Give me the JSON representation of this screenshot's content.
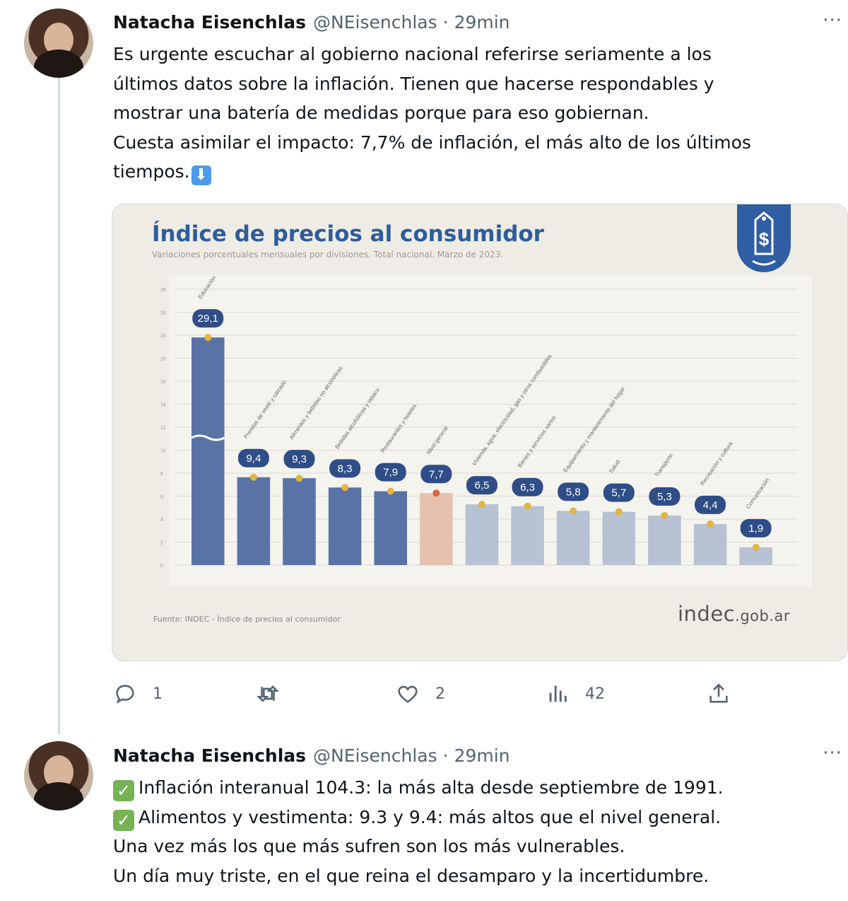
{
  "tweets": [
    {
      "author": "Natacha Eisenchlas",
      "handle": "@NEisenchlas",
      "separator": "·",
      "time": "29min",
      "more": "···",
      "lines": [
        "Es urgente escuchar al gobierno nacional referirse seriamente a los",
        "últimos datos sobre la inflación. Tienen que hacerse respondables y",
        "mostrar una batería de medidas porque para eso gobiernan.",
        "Cuesta asimilar el impacto: 7,7% de inflación, el más alto de los últimos",
        "tiempos."
      ],
      "emoji": "⬇",
      "actions": {
        "replies": "1",
        "retweets": "",
        "likes": "2",
        "views": "42"
      }
    },
    {
      "author": "Natacha Eisenchlas",
      "handle": "@NEisenchlas",
      "separator": "·",
      "time": "29min",
      "more": "···",
      "lines": [
        "Inflación interanual 104.3: la más alta desde septiembre de 1991.",
        "Alimentos y vestimenta: 9.3 y 9.4: más altos que el nivel general.",
        "Una vez más los que más sufren son los más vulnerables.",
        "Un día muy triste, en el que reina el desamparo y la incertidumbre."
      ],
      "check": "✓"
    }
  ],
  "media": {
    "title": "Índice de precios al consumidor",
    "subtitle": "Variaciones porcentuales mensuales por divisiones. Total nacional. Marzo de 2023.",
    "source": "Fuente: INDEC - Índice de precios al consumidor",
    "logo_main": "indec",
    "logo_suffix": ".gob.ar",
    "badge_symbol": "$"
  },
  "chart_data": {
    "type": "bar",
    "title": "Índice de precios al consumidor",
    "subtitle": "Variaciones porcentuales mensuales por divisiones. Total nacional. Marzo de 2023.",
    "categories": [
      "Educación",
      "Prendas de vestir y calzado",
      "Alimentos y bebidas no alcohólicas",
      "Bebidas alcohólicas y tabaco",
      "Restaurantes y hoteles",
      "Nivel general",
      "Vivienda, agua, electricidad, gas y otros combustibles",
      "Bienes y servicios varios",
      "Equipamiento y mantenimiento del hogar",
      "Salud",
      "Transporte",
      "Recreación y cultura",
      "Comunicación"
    ],
    "values": [
      29.1,
      9.4,
      9.3,
      8.3,
      7.9,
      7.7,
      6.5,
      6.3,
      5.8,
      5.7,
      5.3,
      4.4,
      1.9
    ],
    "value_labels": [
      "29,1",
      "9,4",
      "9,3",
      "8,3",
      "7,9",
      "7,7",
      "6,5",
      "6,3",
      "5,8",
      "5,7",
      "5,3",
      "4,4",
      "1,9"
    ],
    "y_ticks": [
      "0",
      "2",
      "4",
      "6",
      "8",
      "10",
      "12",
      "14",
      "16",
      "20",
      "24",
      "26",
      "28"
    ],
    "ylim": [
      0,
      30
    ],
    "axis_break": true,
    "colors": {
      "above": "#5a73a6",
      "below": "#b6c1d4",
      "general": "#e6c1b0",
      "value_badge": "#2f4d86",
      "dot": "#e0b542"
    }
  }
}
